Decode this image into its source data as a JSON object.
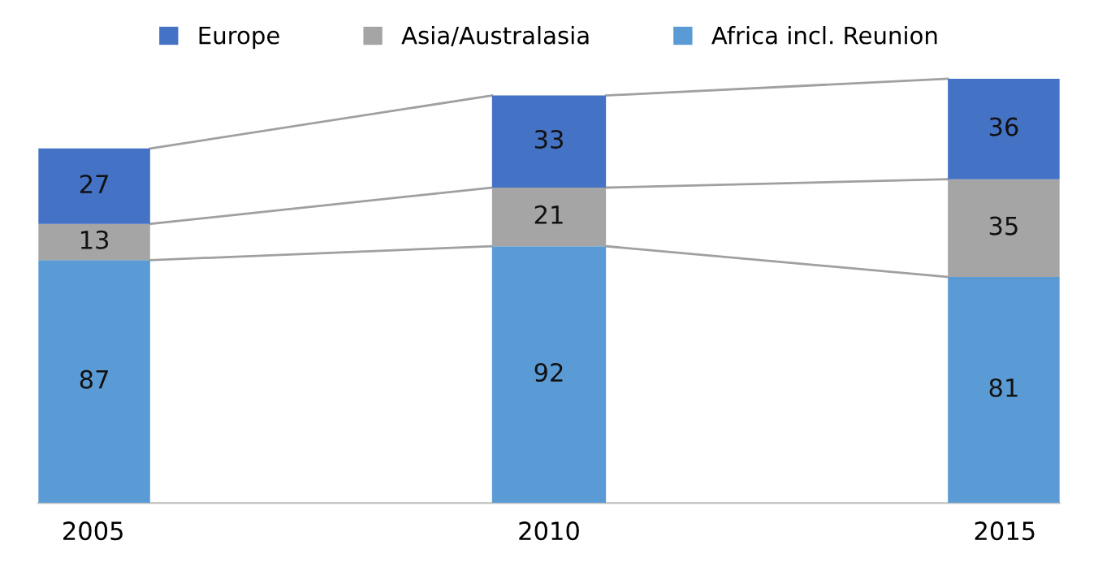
{
  "chart_data": {
    "type": "bar",
    "stacked": true,
    "categories": [
      "2005",
      "2010",
      "2015"
    ],
    "series": [
      {
        "name": "Africa incl. Reunion",
        "color": "#5b9bd5",
        "values": [
          87,
          92,
          81
        ]
      },
      {
        "name": "Asia/Australasia",
        "color": "#a5a5a5",
        "values": [
          13,
          21,
          35
        ]
      },
      {
        "name": "Europe",
        "color": "#4472c4",
        "values": [
          27,
          33,
          36
        ]
      }
    ],
    "data_labels": true,
    "legend": "top",
    "grid": false
  }
}
